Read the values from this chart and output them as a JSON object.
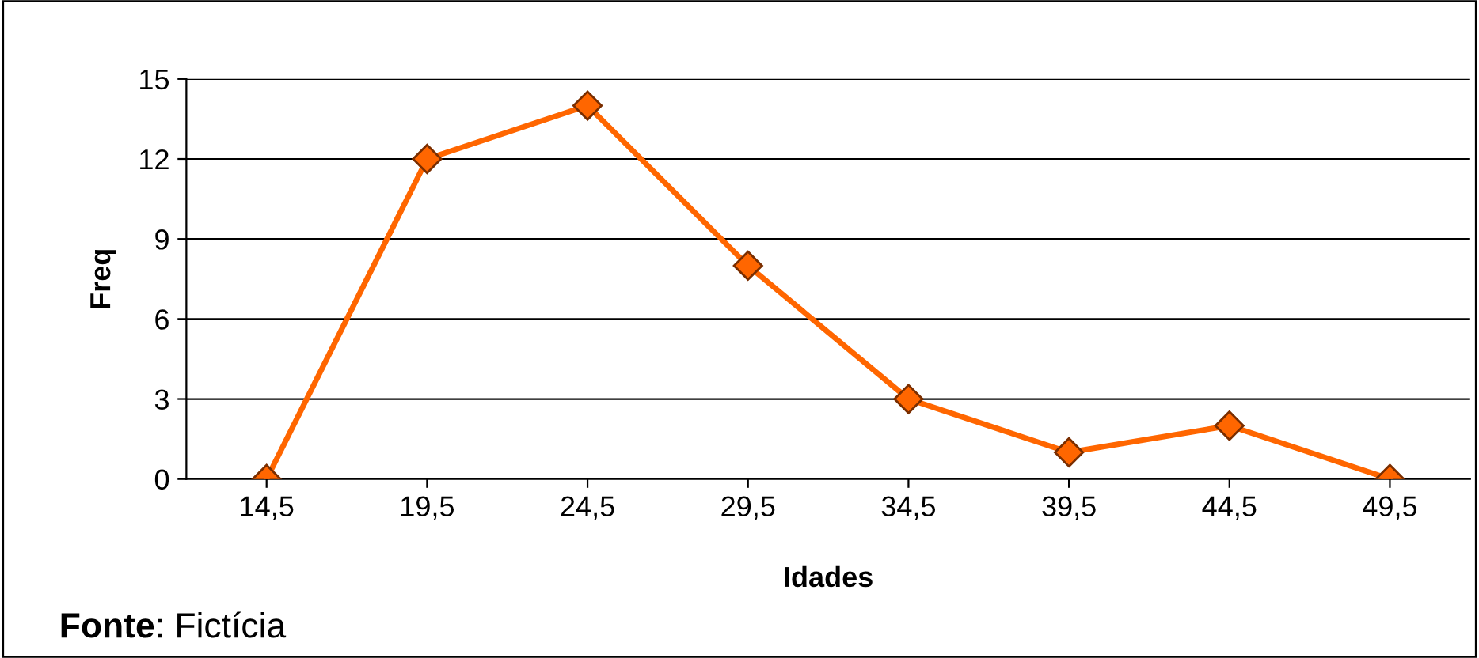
{
  "chart_data": {
    "type": "line",
    "xlabel": "Idades",
    "ylabel": "Freq",
    "categories": [
      "14,5",
      "19,5",
      "24,5",
      "29,5",
      "34,5",
      "39,5",
      "44,5",
      "49,5"
    ],
    "series": [
      {
        "color": "#ff6600",
        "values": [
          0,
          12,
          14,
          8,
          3,
          1,
          2,
          0
        ]
      }
    ],
    "ylim": [
      0,
      15
    ],
    "yticks": [
      0,
      3,
      6,
      9,
      12,
      15
    ],
    "grid": "y",
    "marker": "diamond",
    "line_style": "solid",
    "legend": false,
    "annotations": [
      "Fonte: Fictícia"
    ]
  }
}
